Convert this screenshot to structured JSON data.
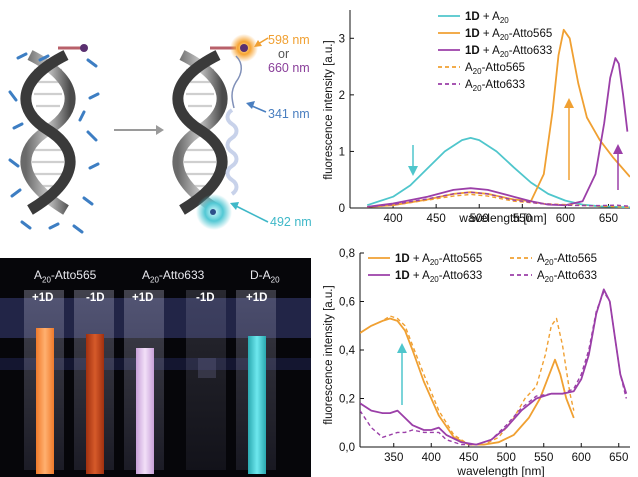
{
  "scheme": {
    "wavelength_top": "598 nm",
    "or_text": "or",
    "wavelength_top2": "660 nm",
    "wavelength_mid": "341 nm",
    "wavelength_bottom": "492 nm",
    "colors": {
      "orange": "#f0a032",
      "purple": "#8a3f9a",
      "blue": "#4a7fc0",
      "cyan": "#3fb8c8"
    }
  },
  "photo": {
    "header_labels": [
      {
        "prefix": "A",
        "sub": "20",
        "suffix": "-Atto565"
      },
      {
        "prefix": "A",
        "sub": "20",
        "suffix": "-Atto633"
      },
      {
        "prefix": "D-A",
        "sub": "20",
        "suffix": ""
      }
    ],
    "cuvette_labels": [
      "+1D",
      "-1D",
      "+1D",
      "-1D",
      "+1D"
    ]
  },
  "chart_data": [
    {
      "type": "line",
      "xlabel": "wavelength [nm]",
      "ylabel": "fluorescence intensity [a.u.]",
      "xlim": [
        350,
        675
      ],
      "ylim": [
        0,
        3.5
      ],
      "xticks": [
        "400",
        "450",
        "500",
        "550",
        "600",
        "650"
      ],
      "yticks": [
        "0",
        "1",
        "2",
        "3"
      ],
      "legend_position": "top-right",
      "legend": [
        {
          "bold": "1D",
          "text": " + A",
          "sub": "20",
          "tail": "",
          "color": "#4fc6cc",
          "dash": false
        },
        {
          "bold": "1D",
          "text": " + A",
          "sub": "20",
          "tail": "-Atto565",
          "color": "#f0a032",
          "dash": false
        },
        {
          "bold": "1D",
          "text": " + A",
          "sub": "20",
          "tail": "-Atto633",
          "color": "#9b3fa8",
          "dash": false
        },
        {
          "bold": "",
          "text": "A",
          "sub": "20",
          "tail": "-Atto565",
          "color": "#f0a032",
          "dash": true
        },
        {
          "bold": "",
          "text": "A",
          "sub": "20",
          "tail": "-Atto633",
          "color": "#9b3fa8",
          "dash": true
        }
      ],
      "series": [
        {
          "color": "#4fc6cc",
          "dash": false,
          "x": [
            370,
            400,
            420,
            440,
            460,
            480,
            490,
            500,
            520,
            540,
            560,
            580,
            600,
            620,
            640,
            660,
            675
          ],
          "y": [
            0.05,
            0.2,
            0.4,
            0.7,
            1.0,
            1.2,
            1.24,
            1.2,
            1.0,
            0.72,
            0.45,
            0.25,
            0.13,
            0.06,
            0.03,
            0.02,
            0.01
          ]
        },
        {
          "color": "#f0a032",
          "dash": false,
          "x": [
            370,
            400,
            440,
            470,
            490,
            510,
            540,
            560,
            575,
            585,
            592,
            598,
            605,
            615,
            625,
            640,
            655,
            675
          ],
          "y": [
            0.02,
            0.05,
            0.15,
            0.25,
            0.28,
            0.25,
            0.15,
            0.12,
            0.6,
            1.7,
            2.7,
            3.15,
            3.0,
            2.2,
            1.6,
            1.2,
            0.9,
            0.55
          ]
        },
        {
          "color": "#9b3fa8",
          "dash": false,
          "x": [
            370,
            400,
            440,
            470,
            490,
            510,
            540,
            560,
            580,
            600,
            620,
            635,
            645,
            652,
            658,
            662,
            667,
            672
          ],
          "y": [
            0.02,
            0.08,
            0.2,
            0.32,
            0.35,
            0.32,
            0.2,
            0.12,
            0.06,
            0.05,
            0.12,
            0.6,
            1.5,
            2.3,
            2.65,
            2.55,
            2.0,
            1.35
          ]
        },
        {
          "color": "#f0a032",
          "dash": true,
          "x": [
            370,
            400,
            440,
            470,
            490,
            510,
            540,
            570,
            600,
            630,
            660,
            675
          ],
          "y": [
            0.02,
            0.05,
            0.14,
            0.21,
            0.24,
            0.21,
            0.12,
            0.08,
            0.06,
            0.04,
            0.02,
            0.01
          ]
        },
        {
          "color": "#9b3fa8",
          "dash": true,
          "x": [
            370,
            400,
            440,
            470,
            490,
            510,
            540,
            570,
            600,
            630,
            660,
            675
          ],
          "y": [
            0.02,
            0.06,
            0.16,
            0.25,
            0.28,
            0.25,
            0.14,
            0.08,
            0.05,
            0.04,
            0.05,
            0.03
          ]
        }
      ]
    },
    {
      "type": "line",
      "xlabel": "wavelength [nm]",
      "ylabel": "fluorescence intensity [a.u.]",
      "xlim": [
        305,
        665
      ],
      "ylim": [
        0,
        0.8
      ],
      "xticks": [
        "350",
        "400",
        "450",
        "500",
        "550",
        "600",
        "650"
      ],
      "yticks": [
        "0,0",
        "0,2",
        "0,4",
        "0,6",
        "0,8"
      ],
      "legend_position": "top",
      "legend": [
        {
          "bold": "1D",
          "text": " + A",
          "sub": "20",
          "tail": "-Atto565",
          "color": "#f0a032",
          "dash": false
        },
        {
          "bold": "",
          "text": "A",
          "sub": "20",
          "tail": "-Atto565",
          "color": "#f0a032",
          "dash": true
        },
        {
          "bold": "1D",
          "text": " + A",
          "sub": "20",
          "tail": "-Atto633",
          "color": "#9b3fa8",
          "dash": false
        },
        {
          "bold": "",
          "text": "A",
          "sub": "20",
          "tail": "-Atto633",
          "color": "#9b3fa8",
          "dash": true
        }
      ],
      "series": [
        {
          "color": "#f0a032",
          "dash": false,
          "x": [
            305,
            320,
            335,
            345,
            355,
            365,
            375,
            390,
            410,
            430,
            450,
            470,
            490,
            510,
            530,
            545,
            555,
            565,
            572,
            580,
            590
          ],
          "y": [
            0.47,
            0.5,
            0.52,
            0.53,
            0.52,
            0.48,
            0.4,
            0.27,
            0.13,
            0.04,
            0.01,
            0.01,
            0.02,
            0.05,
            0.12,
            0.2,
            0.28,
            0.36,
            0.3,
            0.2,
            0.12
          ]
        },
        {
          "color": "#f0a032",
          "dash": true,
          "x": [
            305,
            320,
            335,
            345,
            355,
            365,
            375,
            390,
            410,
            430,
            450,
            470,
            490,
            510,
            525,
            540,
            552,
            560,
            567,
            575,
            585,
            590
          ],
          "y": [
            0.47,
            0.5,
            0.52,
            0.54,
            0.53,
            0.5,
            0.42,
            0.3,
            0.15,
            0.05,
            0.01,
            0.01,
            0.04,
            0.12,
            0.2,
            0.25,
            0.38,
            0.5,
            0.53,
            0.42,
            0.22,
            0.15
          ]
        },
        {
          "color": "#9b3fa8",
          "dash": false,
          "x": [
            305,
            320,
            335,
            345,
            355,
            365,
            375,
            390,
            400,
            410,
            420,
            440,
            460,
            480,
            500,
            520,
            540,
            560,
            575,
            590,
            600,
            610,
            620,
            630,
            638,
            645,
            652,
            660
          ],
          "y": [
            0.18,
            0.15,
            0.14,
            0.14,
            0.15,
            0.12,
            0.09,
            0.07,
            0.07,
            0.08,
            0.05,
            0.02,
            0.01,
            0.03,
            0.08,
            0.15,
            0.2,
            0.22,
            0.22,
            0.23,
            0.28,
            0.38,
            0.55,
            0.65,
            0.6,
            0.45,
            0.3,
            0.22
          ]
        },
        {
          "color": "#9b3fa8",
          "dash": true,
          "x": [
            305,
            320,
            335,
            345,
            355,
            365,
            375,
            390,
            400,
            410,
            420,
            440,
            460,
            480,
            500,
            520,
            540,
            560,
            575,
            590,
            600,
            610,
            620,
            630,
            638,
            645,
            652,
            660
          ],
          "y": [
            0.15,
            0.08,
            0.04,
            0.05,
            0.06,
            0.06,
            0.07,
            0.06,
            0.06,
            0.06,
            0.03,
            0.01,
            0.01,
            0.03,
            0.09,
            0.16,
            0.21,
            0.22,
            0.22,
            0.24,
            0.3,
            0.4,
            0.56,
            0.64,
            0.6,
            0.45,
            0.3,
            0.2
          ]
        }
      ]
    }
  ]
}
